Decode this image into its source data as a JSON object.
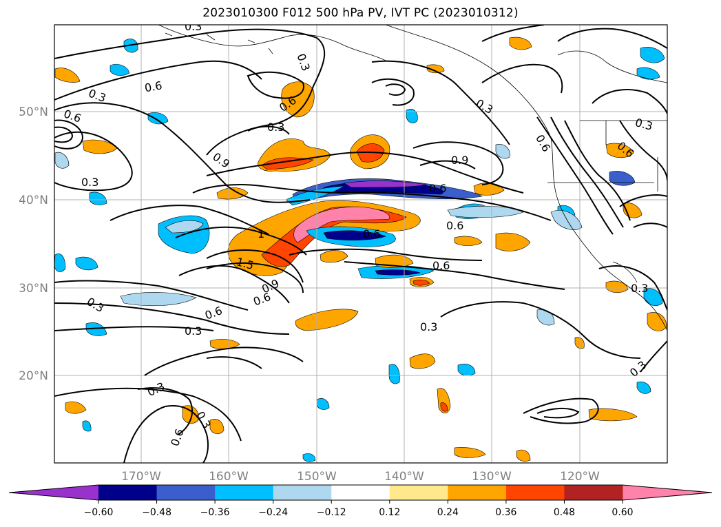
{
  "title": "2023010300 F012 500 hPa PV, IVT PC (2023010312)",
  "map": {
    "lat_ticks": [
      "50°N",
      "40°N",
      "30°N",
      "20°N"
    ],
    "lon_ticks": [
      "170°W",
      "160°W",
      "150°W",
      "140°W",
      "130°W",
      "120°W"
    ],
    "contour_labels": [
      "0.3",
      "0.6",
      "0.6",
      "0.3",
      "0.3",
      "0.6",
      "0.9",
      "0.3",
      "0.9",
      "0.6",
      "0.6",
      "0.3",
      "1",
      "1.5",
      "0.6",
      "0.9",
      "0.6",
      "0.6",
      "0.3",
      "0.3",
      "0.3",
      "0.6",
      "0.3",
      "0.3",
      "0.6",
      "0.3",
      "0.6",
      "0.6",
      "0.3",
      "0.3",
      "0.3"
    ]
  },
  "colorbar": {
    "colors": [
      "#9932cc",
      "#00008b",
      "#3a5fcd",
      "#00bfff",
      "#add8f0",
      "#ffffff",
      "#ffe98a",
      "#ffa500",
      "#ff4500",
      "#b22222",
      "#ff82ab"
    ],
    "tick_labels": [
      "−0.60",
      "−0.48",
      "−0.36",
      "−0.24",
      "−0.12",
      "0.12",
      "0.24",
      "0.36",
      "0.48",
      "0.60"
    ]
  },
  "colors": {
    "grid": "#b0b0b0",
    "tick_text": "#808080"
  }
}
